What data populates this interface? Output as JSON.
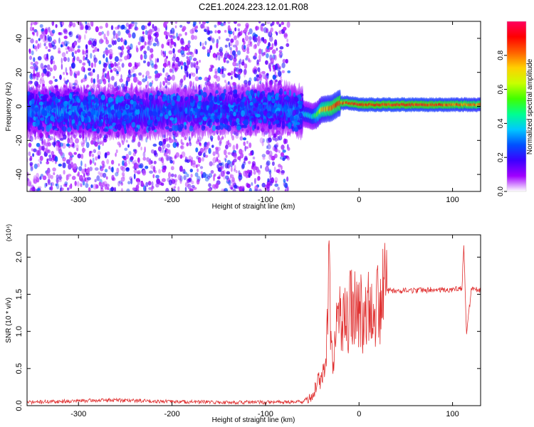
{
  "figure": {
    "title": "C2E1.2024.223.12.01.R08"
  },
  "chart_data": [
    {
      "type": "heatmap",
      "title": "C2E1.2024.223.12.01.R08",
      "xlabel": "Height of straight line (km)",
      "ylabel": "Frequency (Hz)",
      "xlim": [
        -355,
        130
      ],
      "ylim": [
        -50,
        50
      ],
      "x_ticks": [
        -300,
        -200,
        -100,
        0,
        100
      ],
      "x_tick_labels": [
        "-300",
        "-200",
        "-100",
        "0",
        "100"
      ],
      "y_ticks": [
        -40,
        -20,
        0,
        20,
        40
      ],
      "y_tick_labels": [
        "-40",
        "-20",
        "0",
        "20",
        "40"
      ],
      "colorbar": {
        "label": "Normalized spectral amplitude",
        "range": [
          0,
          1
        ],
        "ticks": [
          0,
          0.2,
          0.4,
          0.6,
          0.8
        ],
        "tick_labels": [
          "0.0",
          "0.2",
          "0.4",
          "0.6",
          "0.8"
        ],
        "colors": [
          "#ffffff",
          "#a000ff",
          "#3c00ff",
          "#0050ff",
          "#00c8ff",
          "#00ff90",
          "#40ff00",
          "#c8ff00",
          "#ffd000",
          "#ff6000",
          "#ff0000",
          "#ff0060"
        ]
      },
      "ridge": {
        "x": [
          -355,
          -300,
          -250,
          -200,
          -150,
          -75,
          -60,
          -50,
          -45,
          -40,
          -30,
          -20,
          -10,
          0,
          50,
          100,
          130
        ],
        "y": [
          -3,
          -3,
          -4,
          -3,
          -2,
          -2,
          -4,
          -6,
          -5,
          -2,
          -1,
          2,
          2,
          1,
          1,
          1,
          1
        ],
        "peak_amplitude": [
          0.35,
          0.4,
          0.35,
          0.3,
          0.3,
          0.35,
          0.4,
          0.45,
          0.6,
          0.8,
          0.9,
          0.95,
          0.95,
          0.98,
          1.0,
          0.95,
          0.9
        ]
      },
      "noise_segments": [
        {
          "x_range": [
            -355,
            -150
          ],
          "density": 0.9
        },
        {
          "x_range": [
            -150,
            -75
          ],
          "density": 1.0
        },
        {
          "x_range": [
            -75,
            130
          ],
          "density": 0.0
        }
      ]
    },
    {
      "type": "line",
      "xlabel": "Height of straight line (km)",
      "ylabel": "SNR (10 * v/v)",
      "y_multiplier": "(x10⁴)",
      "xlim": [
        -355,
        130
      ],
      "ylim": [
        0,
        2.3
      ],
      "x_ticks": [
        -300,
        -200,
        -100,
        0,
        100
      ],
      "x_tick_labels": [
        "-300",
        "-200",
        "-100",
        "0",
        "100"
      ],
      "y_ticks": [
        0,
        0.5,
        1.0,
        1.5,
        2.0
      ],
      "y_tick_labels": [
        "0.0",
        "0.5",
        "1.0",
        "1.5",
        "2.0"
      ],
      "series": [
        {
          "color": "#e03030",
          "x": [
            -355,
            -300,
            -260,
            -200,
            -150,
            -100,
            -60,
            -50,
            -45,
            -40,
            -35,
            -32,
            -30,
            -25,
            -20,
            -15,
            -10,
            -5,
            0,
            10,
            20,
            30,
            50,
            80,
            100,
            110,
            112,
            115,
            120,
            130
          ],
          "y": [
            0.02,
            0.04,
            0.05,
            0.03,
            0.02,
            0.02,
            0.03,
            0.12,
            0.3,
            0.4,
            0.55,
            1.85,
            0.7,
            0.9,
            1.2,
            1.1,
            1.25,
            1.3,
            1.2,
            1.35,
            1.45,
            1.55,
            1.55,
            1.56,
            1.56,
            1.58,
            2.15,
            0.95,
            1.56,
            1.56
          ]
        }
      ]
    }
  ]
}
